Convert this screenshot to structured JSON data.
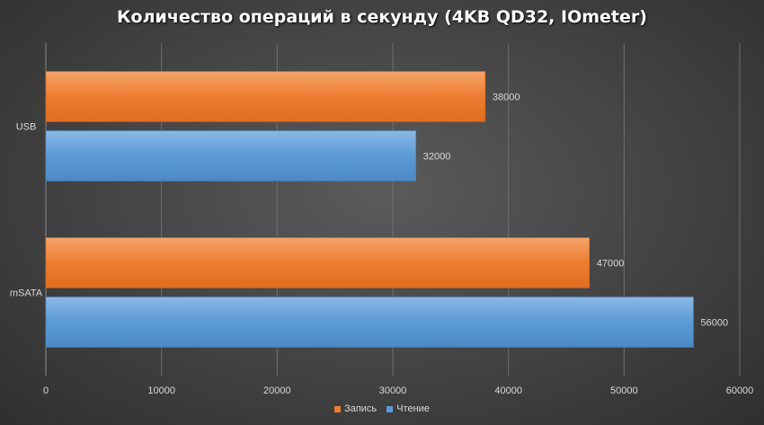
{
  "chart_data": {
    "type": "bar",
    "orientation": "horizontal",
    "title": "Количество операций в секунду (4KB QD32, IOmeter)",
    "categories": [
      "USB",
      "mSATA"
    ],
    "series": [
      {
        "name": "Запись",
        "values": [
          38000,
          47000
        ],
        "color": "#ed7d31"
      },
      {
        "name": "Чтение",
        "values": [
          32000,
          56000
        ],
        "color": "#5b9bd5"
      }
    ],
    "xlim": [
      0,
      60000
    ],
    "xticks": [
      "0",
      "10000",
      "20000",
      "30000",
      "40000",
      "50000",
      "60000"
    ],
    "grid": true,
    "legend_position": "bottom",
    "data_labels": true
  }
}
